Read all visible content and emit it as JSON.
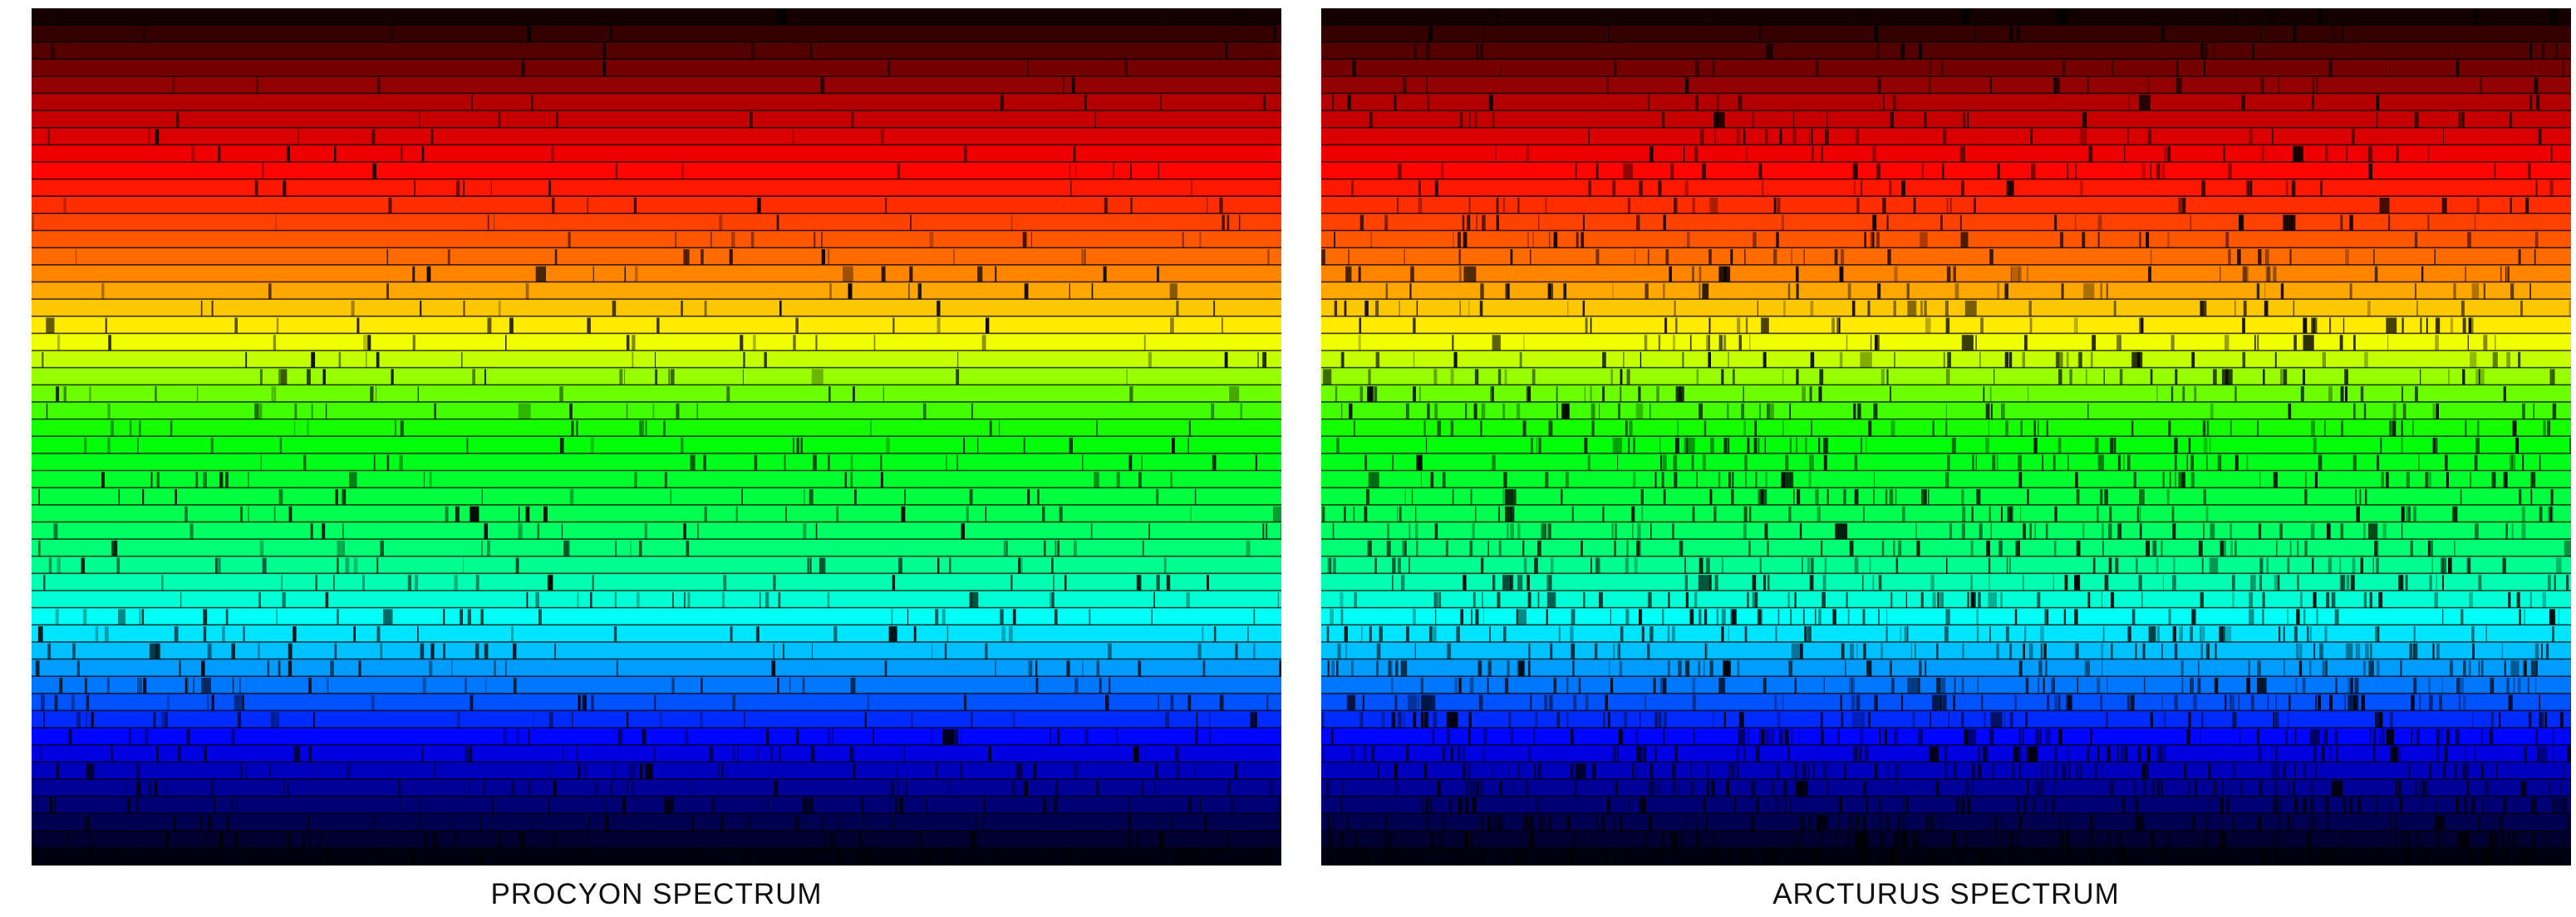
{
  "panels": [
    {
      "caption": "PROCYON SPECTRUM",
      "line_density": "moderate"
    },
    {
      "caption": "ARCTURUS SPECTRUM",
      "line_density": "dense"
    }
  ],
  "colors": {
    "background": "#ffffff",
    "caption_text": "#111111",
    "gradient_stops": [
      "#140000",
      "#b00000",
      "#ff0000",
      "#ff7a00",
      "#ffff00",
      "#00ff00",
      "#00ff7a",
      "#00ffff",
      "#0070ff",
      "#0000ff",
      "#000060",
      "#000010"
    ]
  }
}
